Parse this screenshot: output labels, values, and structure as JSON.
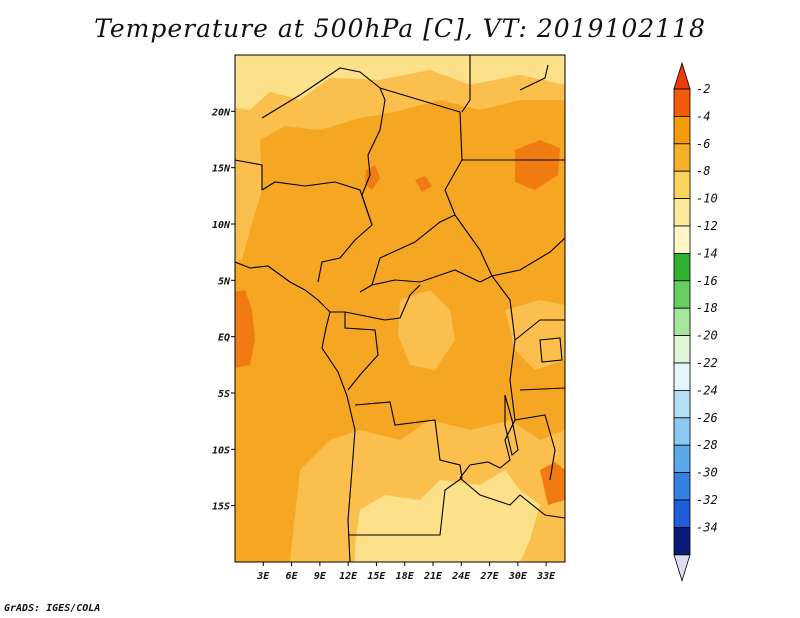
{
  "title": "Temperature at 500hPa [C], VT: 2019102118",
  "credit": "GrADS: IGES/COLA",
  "colors": {
    "map_base": "#f5a623",
    "map_light": "#fbbf4d",
    "map_pale": "#fde08a",
    "map_warm": "#f07b10",
    "border": "#000000"
  },
  "map": {
    "lon_range": [
      0,
      35
    ],
    "lat_range": [
      -20,
      25
    ],
    "x_ticks": [
      {
        "value": 3,
        "label": "3E"
      },
      {
        "value": 6,
        "label": "6E"
      },
      {
        "value": 9,
        "label": "9E"
      },
      {
        "value": 12,
        "label": "12E"
      },
      {
        "value": 15,
        "label": "15E"
      },
      {
        "value": 18,
        "label": "18E"
      },
      {
        "value": 21,
        "label": "21E"
      },
      {
        "value": 24,
        "label": "24E"
      },
      {
        "value": 27,
        "label": "27E"
      },
      {
        "value": 30,
        "label": "30E"
      },
      {
        "value": 33,
        "label": "33E"
      }
    ],
    "y_ticks": [
      {
        "value": 20,
        "label": "20N"
      },
      {
        "value": 15,
        "label": "15N"
      },
      {
        "value": 10,
        "label": "10N"
      },
      {
        "value": 5,
        "label": "5N"
      },
      {
        "value": 0,
        "label": "EQ"
      },
      {
        "value": -5,
        "label": "5S"
      },
      {
        "value": -10,
        "label": "10S"
      },
      {
        "value": -15,
        "label": "15S"
      }
    ]
  },
  "colorbar": {
    "top_arrow_color": "#ee3a0e",
    "bottom_arrow_color": "#dcdcf5",
    "boxes": [
      {
        "label": "-2",
        "color": "#f25a0c"
      },
      {
        "label": "-4",
        "color": "#f59b0a"
      },
      {
        "label": "-6",
        "color": "#f7b02a"
      },
      {
        "label": "-8",
        "color": "#fad25e"
      },
      {
        "label": "-10",
        "color": "#fde99a"
      },
      {
        "label": "-12",
        "color": "#fdf6c6"
      },
      {
        "label": "-14",
        "color": "#30b22e"
      },
      {
        "label": "-16",
        "color": "#66cf60"
      },
      {
        "label": "-18",
        "color": "#a6e59c"
      },
      {
        "label": "-20",
        "color": "#dff5d6"
      },
      {
        "label": "-22",
        "color": "#e6f5fb"
      },
      {
        "label": "-24",
        "color": "#b4ddf6"
      },
      {
        "label": "-26",
        "color": "#8dc8f2"
      },
      {
        "label": "-28",
        "color": "#5aa9ea"
      },
      {
        "label": "-30",
        "color": "#3381e3"
      },
      {
        "label": "-32",
        "color": "#1f5ed8"
      },
      {
        "label": "-34",
        "color": "#1341b8"
      }
    ],
    "extra_labels": [
      "-34"
    ],
    "last_box_color": "#0b1a78"
  }
}
